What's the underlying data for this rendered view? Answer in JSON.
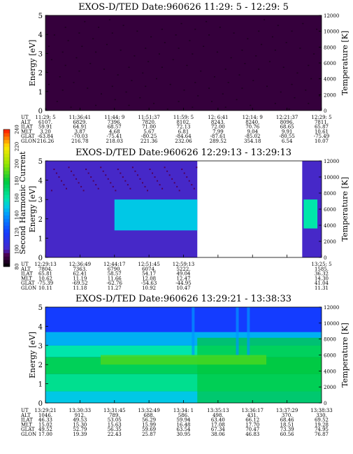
{
  "chart_data": [
    {
      "type": "heatmap",
      "title": "EXOS-D/TED   Date:960626  11:29: 5 - 12:29: 5",
      "ylabel": "Energy [eV]",
      "y2label": "Temperature [K]",
      "ylim": [
        0,
        5
      ],
      "y2lim": [
        0,
        12000
      ],
      "yticks": [
        "0",
        "1",
        "2",
        "3",
        "4",
        "5"
      ],
      "y2ticks": [
        "0",
        "2000",
        "4000",
        "6000",
        "8000",
        "10000",
        "12000"
      ],
      "data_x_range": [
        0,
        1
      ],
      "orbit_labels": [
        "UT",
        "ALT",
        "ILAT",
        "MLT",
        "GLAT",
        "GLON"
      ],
      "orbit_columns": [
        [
          "11:29: 5",
          "6107.",
          "59.91",
          "3.20",
          "-63.84",
          "216.26"
        ],
        [
          "11:36:41",
          "6829.",
          "64.91",
          "3.87",
          "-70.03",
          "216.78"
        ],
        [
          "11:44: 9",
          "7396.",
          "68.57",
          "4.68",
          "-75.41",
          "218.03"
        ],
        [
          "11:51:37",
          "7820.",
          "71.00",
          "5.67",
          "-80.25",
          "221.36"
        ],
        [
          "11:59: 5",
          "8102.",
          "72.13",
          "6.81",
          "-84.64",
          "232.06"
        ],
        [
          "12: 6:41",
          "8243.",
          "72.00",
          "7.99",
          "-87.61",
          "289.52"
        ],
        [
          "12:14: 9",
          "8240.",
          "70.76",
          "9.04",
          "-85.02",
          "354.18"
        ],
        [
          "12:21:37",
          "8096.",
          "68.65",
          "9.91",
          "-80.55",
          "6.54"
        ],
        [
          "12:29: 5",
          "7811.",
          "65.87",
          "10.61",
          "-75.49",
          "10.07"
        ]
      ],
      "bands": [
        {
          "y0": 0,
          "y1": 5,
          "level": 90
        }
      ],
      "blobs": []
    },
    {
      "type": "heatmap",
      "title": "EXOS-D/TED   Date:960626  12:29:13 - 13:29:13",
      "ylabel": "Energy [eV]",
      "y2label": "Temperature [K]",
      "ylim": [
        0,
        5
      ],
      "y2lim": [
        0,
        12000
      ],
      "yticks": [
        "0",
        "1",
        "2",
        "3",
        "4",
        "5"
      ],
      "y2ticks": [
        "0",
        "2000",
        "4000",
        "6000",
        "8000",
        "10000",
        "12000"
      ],
      "data_x_range": [
        0,
        0.55
      ],
      "data_x_range2": [
        0.93,
        1
      ],
      "orbit_labels": [
        "UT",
        "ALT",
        "ILAT",
        "MLT",
        "GLAT",
        "GLON"
      ],
      "orbit_columns": [
        [
          "12:29:13",
          "7804.",
          "65.81",
          "10.62",
          "-75.39",
          "10.11"
        ],
        [
          "12:36:49",
          "7363.",
          "62.41",
          "11.19",
          "-69.52",
          "11.18"
        ],
        [
          "12:44:17",
          "6790.",
          "58.57",
          "11.66",
          "-62.76",
          "11.27"
        ],
        [
          "12:51:45",
          "6074.",
          "54.17",
          "12.08",
          "-54.63",
          "10.92"
        ],
        [
          "12:59:13",
          "5222.",
          "49.04",
          "12.47",
          "-44.95",
          "10.47"
        ],
        [
          "",
          "",
          "",
          "",
          "",
          ""
        ],
        [
          "",
          "",
          "",
          "",
          "",
          ""
        ],
        [
          "",
          "",
          "",
          "",
          "",
          ""
        ],
        [
          "13:25: 5",
          "1585.",
          "36.32",
          "14.30",
          "41.04",
          "11.31"
        ]
      ],
      "bands": [
        {
          "y0": 0,
          "y1": 5,
          "level": 100
        },
        {
          "y0": 1.4,
          "y1": 3.0,
          "level": 150,
          "x0": 0.25,
          "x1": 0.55
        }
      ],
      "blobs": [
        {
          "x": 0.42,
          "y": 2.3,
          "level": 160
        }
      ]
    },
    {
      "type": "heatmap",
      "title": "EXOS-D/TED   Date:960626  13:29:21 - 13:38:33",
      "ylabel": "Energy [eV]",
      "y2label": "Temperature [K]",
      "ylim": [
        0,
        5
      ],
      "y2lim": [
        0,
        12000
      ],
      "yticks": [
        "0",
        "1",
        "2",
        "3",
        "4",
        "5"
      ],
      "y2ticks": [
        "0",
        "2000",
        "4000",
        "6000",
        "8000",
        "10000",
        "12000"
      ],
      "data_x_range": [
        0,
        1
      ],
      "orbit_labels": [
        "UT",
        "ALT",
        "ILAT",
        "MLT",
        "GLAT",
        "GLON"
      ],
      "orbit_columns": [
        [
          "13:29:21",
          "1046.",
          "46.33",
          "15.02",
          "49.52",
          "17.00"
        ],
        [
          "13:30:33",
          "912.",
          "49.53",
          "15.30",
          "52.79",
          "19.39"
        ],
        [
          "13:31:45",
          "789.",
          "53.05",
          "15.63",
          "56.35",
          "22.43"
        ],
        [
          "13:32:49",
          "688.",
          "56.29",
          "15.99",
          "59.69",
          "25.87"
        ],
        [
          "13:34: 1",
          "586.",
          "59.94",
          "16.48",
          "63.54",
          "30.95"
        ],
        [
          "13:35:13",
          "498.",
          "63.40",
          "17.08",
          "67.34",
          "38.06"
        ],
        [
          "13:36:17",
          "431.",
          "66.12",
          "17.70",
          "70.47",
          "46.83"
        ],
        [
          "13:37:29",
          "370.",
          "68.46",
          "18.51",
          "73.39",
          "60.56"
        ],
        [
          "13:38:33",
          "330.",
          "69.52",
          "19.28",
          "74.95",
          "76.87"
        ]
      ],
      "bands": [
        {
          "y0": 0,
          "y1": 5,
          "level": 120
        }
      ],
      "blobs": []
    }
  ],
  "colorbar": {
    "label": "Second Harmonic Current",
    "ticks": [
      "80",
      "100",
      "120",
      "140",
      "160",
      "180",
      "200",
      "220",
      "240"
    ]
  }
}
